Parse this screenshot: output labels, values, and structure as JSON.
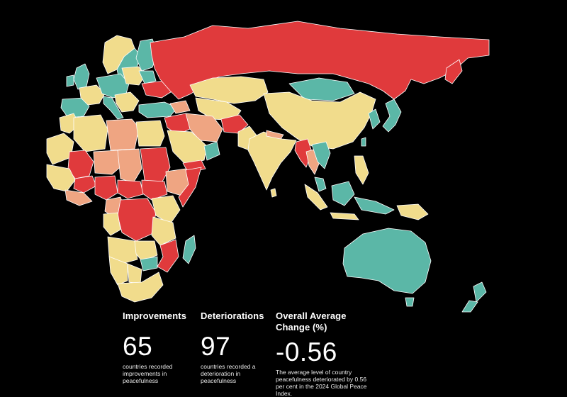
{
  "colors": {
    "background": "#000000",
    "improved": "#5BB7A7",
    "slight_deterioration": "#F1DC8C",
    "moderate_deterioration": "#EFA582",
    "strong_deterioration": "#E03A3C",
    "border": "#ffffff"
  },
  "stats": {
    "improvements": {
      "title": "Improvements",
      "value": "65",
      "description": "countries recorded improvements in peacefulness"
    },
    "deteriorations": {
      "title": "Deteriorations",
      "value": "97",
      "description": "countries recorded a deterioration in peacefulness"
    },
    "average": {
      "title": "Overall Average Change (%)",
      "value": "-0.56",
      "description": "The average level of country peacefulness deteriorated by 0.56 per cent in the 2024 Global Peace Index."
    }
  }
}
